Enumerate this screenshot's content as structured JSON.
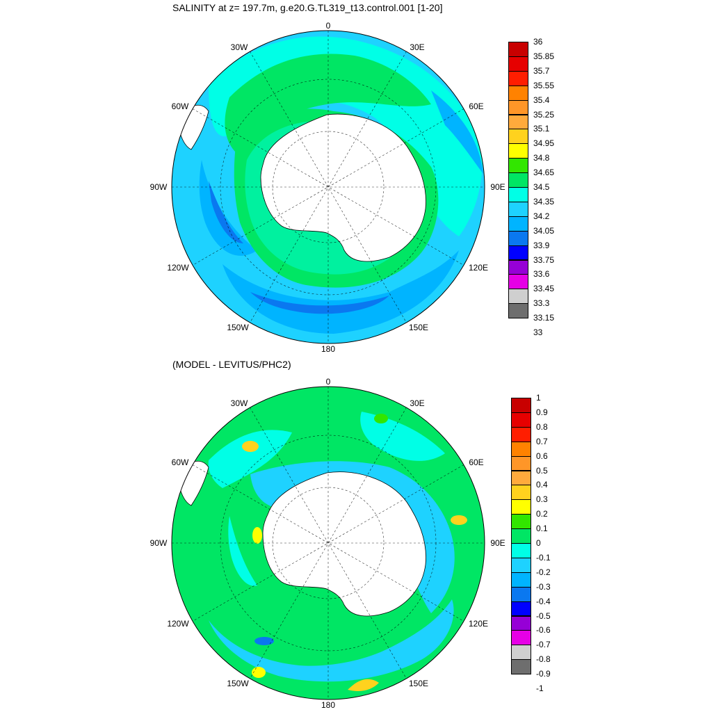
{
  "colors": [
    "#6e6e6e",
    "#cfcfcf",
    "#e600e6",
    "#9600d6",
    "#0000ff",
    "#0a78f0",
    "#00b4ff",
    "#1ed2ff",
    "#00ffe6",
    "#00e664",
    "#32e600",
    "#ffff00",
    "#ffd21e",
    "#ffaa3c",
    "#ff9628",
    "#ff8200",
    "#ff1e00",
    "#e60000",
    "#c80000"
  ],
  "panels": [
    {
      "title": "SALINITY at z= 197.7m, g.e20.G.TL319_t13.control.001 [1-20]",
      "lon_labels": [
        "0",
        "30E",
        "60E",
        "90E",
        "120E",
        "150E",
        "180",
        "150W",
        "120W",
        "90W",
        "60W",
        "30W"
      ],
      "colorbar_labels": [
        "36",
        "35.85",
        "35.7",
        "35.55",
        "35.4",
        "35.25",
        "35.1",
        "34.95",
        "34.8",
        "34.65",
        "34.5",
        "34.35",
        "34.2",
        "34.05",
        "33.9",
        "33.75",
        "33.6",
        "33.45",
        "33.3",
        "33.15",
        "33"
      ]
    },
    {
      "title": "(MODEL - LEVITUS/PHC2)",
      "lon_labels": [
        "0",
        "30E",
        "60E",
        "90E",
        "120E",
        "150E",
        "180",
        "150W",
        "120W",
        "90W",
        "60W",
        "30W"
      ],
      "colorbar_labels": [
        "1",
        "0.9",
        "0.8",
        "0.7",
        "0.6",
        "0.5",
        "0.4",
        "0.3",
        "0.2",
        "0.1",
        "0",
        "-0.1",
        "-0.2",
        "-0.3",
        "-0.4",
        "-0.5",
        "-0.6",
        "-0.7",
        "-0.8",
        "-0.9",
        "-1"
      ]
    }
  ]
}
